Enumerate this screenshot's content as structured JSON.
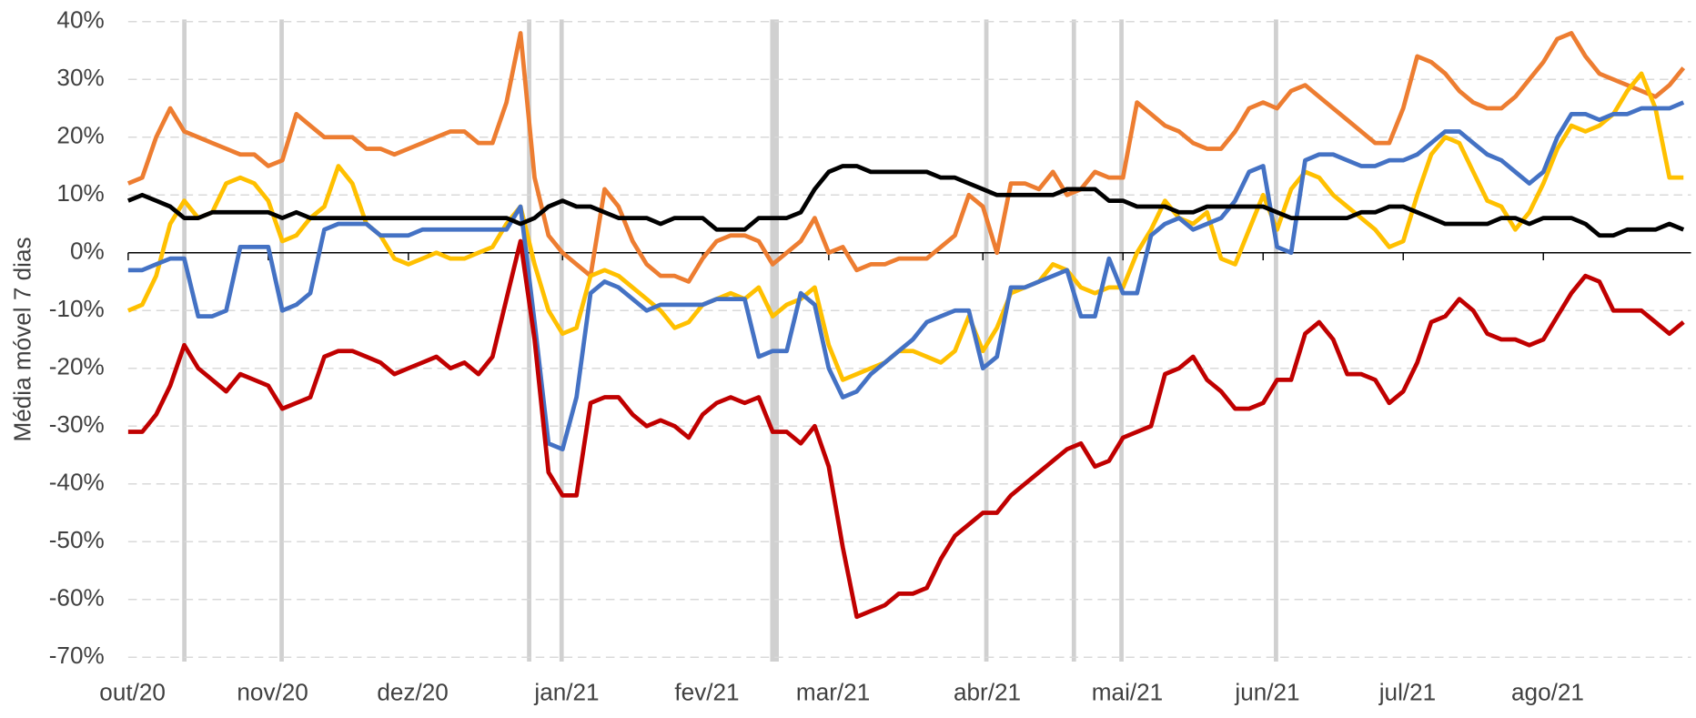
{
  "chart_data": {
    "type": "line",
    "y_label": "Média móvel 7 dias",
    "categories": [
      "out/20",
      null,
      null,
      null,
      null,
      null,
      null,
      null,
      null,
      null,
      "nov/20",
      null,
      null,
      null,
      null,
      null,
      null,
      null,
      null,
      null,
      "dez/20",
      null,
      null,
      null,
      null,
      null,
      null,
      null,
      null,
      null,
      null,
      "jan/21",
      null,
      null,
      null,
      null,
      null,
      null,
      null,
      null,
      null,
      "fev/21",
      null,
      null,
      null,
      null,
      null,
      null,
      null,
      null,
      "mar/21",
      null,
      null,
      null,
      null,
      null,
      null,
      null,
      null,
      null,
      null,
      "abr/21",
      null,
      null,
      null,
      null,
      null,
      null,
      null,
      null,
      null,
      "mai/21",
      null,
      null,
      null,
      null,
      null,
      null,
      null,
      null,
      null,
      "jun/21",
      null,
      null,
      null,
      null,
      null,
      null,
      null,
      null,
      null,
      "jul/21",
      null,
      null,
      null,
      null,
      null,
      null,
      null,
      null,
      null,
      "ago/21",
      null,
      null,
      null,
      null,
      null,
      null,
      null,
      null,
      null,
      null
    ],
    "series": [
      {
        "color": "#ed7d31",
        "values": [
          12,
          13,
          20,
          25,
          21,
          20,
          19,
          18,
          17,
          17,
          15,
          16,
          24,
          22,
          20,
          20,
          20,
          18,
          18,
          17,
          18,
          19,
          20,
          21,
          21,
          19,
          19,
          26,
          38,
          13,
          3,
          0,
          -2,
          -4,
          11,
          8,
          2,
          -2,
          -4,
          -4,
          -5,
          -1,
          2,
          3,
          3,
          2,
          -2,
          0,
          2,
          6,
          0,
          1,
          -3,
          -2,
          -2,
          -1,
          -1,
          -1,
          1,
          3,
          10,
          8,
          0,
          12,
          12,
          11,
          14,
          10,
          11,
          14,
          13,
          13,
          26,
          24,
          22,
          21,
          19,
          18,
          18,
          21,
          25,
          26,
          25,
          28,
          29,
          27,
          25,
          23,
          21,
          19,
          19,
          25,
          34,
          33,
          31,
          28,
          26,
          25,
          25,
          27,
          30,
          33,
          37,
          38,
          34,
          31,
          30,
          29,
          28,
          27,
          29,
          32
        ]
      },
      {
        "color": "#ffc000",
        "values": [
          -10,
          -9,
          -4,
          5,
          9,
          6,
          7,
          12,
          13,
          12,
          9,
          2,
          3,
          6,
          8,
          15,
          12,
          5,
          3,
          -1,
          -2,
          -1,
          0,
          -1,
          -1,
          0,
          1,
          5,
          8,
          -2,
          -10,
          -14,
          -13,
          -4,
          -3,
          -4,
          -6,
          -8,
          -10,
          -13,
          -12,
          -9,
          -8,
          -7,
          -8,
          -6,
          -11,
          -9,
          -8,
          -6,
          -16,
          -22,
          -21,
          -20,
          -19,
          -17,
          -17,
          -18,
          -19,
          -17,
          -11,
          -17,
          -13,
          -7,
          -6,
          -5,
          -2,
          -3,
          -6,
          -7,
          -6,
          -6,
          0,
          4,
          9,
          6,
          5,
          7,
          -1,
          -2,
          4,
          10,
          4,
          11,
          14,
          13,
          10,
          8,
          6,
          4,
          1,
          2,
          10,
          17,
          20,
          19,
          14,
          9,
          8,
          4,
          7,
          12,
          18,
          22,
          21,
          22,
          24,
          28,
          31,
          25,
          13,
          13
        ]
      },
      {
        "color": "#4472c4",
        "values": [
          -3,
          -3,
          -2,
          -1,
          -1,
          -11,
          -11,
          -10,
          1,
          1,
          1,
          -10,
          -9,
          -7,
          4,
          5,
          5,
          5,
          3,
          3,
          3,
          4,
          4,
          4,
          4,
          4,
          4,
          4,
          8,
          -12,
          -33,
          -34,
          -25,
          -7,
          -5,
          -6,
          -8,
          -10,
          -9,
          -9,
          -9,
          -9,
          -8,
          -8,
          -8,
          -18,
          -17,
          -17,
          -7,
          -9,
          -20,
          -25,
          -24,
          -21,
          -19,
          -17,
          -15,
          -12,
          -11,
          -10,
          -10,
          -20,
          -18,
          -6,
          -6,
          -5,
          -4,
          -3,
          -11,
          -11,
          -1,
          -7,
          -7,
          3,
          5,
          6,
          4,
          5,
          6,
          9,
          14,
          15,
          1,
          0,
          16,
          17,
          17,
          16,
          15,
          15,
          16,
          16,
          17,
          19,
          21,
          21,
          19,
          17,
          16,
          14,
          12,
          14,
          20,
          24,
          24,
          23,
          24,
          24,
          25,
          25,
          25,
          26
        ]
      },
      {
        "color": "#c00000",
        "values": [
          -31,
          -31,
          -28,
          -23,
          -16,
          -20,
          -22,
          -24,
          -21,
          -22,
          -23,
          -27,
          -26,
          -25,
          -18,
          -17,
          -17,
          -18,
          -19,
          -21,
          -20,
          -19,
          -18,
          -20,
          -19,
          -21,
          -18,
          -8,
          2,
          -15,
          -38,
          -42,
          -42,
          -26,
          -25,
          -25,
          -28,
          -30,
          -29,
          -30,
          -32,
          -28,
          -26,
          -25,
          -26,
          -25,
          -31,
          -31,
          -33,
          -30,
          -37,
          -51,
          -63,
          -62,
          -61,
          -59,
          -59,
          -58,
          -53,
          -49,
          -47,
          -45,
          -45,
          -42,
          -40,
          -38,
          -36,
          -34,
          -33,
          -37,
          -36,
          -32,
          -31,
          -30,
          -21,
          -20,
          -18,
          -22,
          -24,
          -27,
          -27,
          -26,
          -22,
          -22,
          -14,
          -12,
          -15,
          -21,
          -21,
          -22,
          -26,
          -24,
          -19,
          -12,
          -11,
          -8,
          -10,
          -14,
          -15,
          -15,
          -16,
          -15,
          -11,
          -7,
          -4,
          -5,
          -10,
          -10,
          -10,
          -12,
          -14,
          -12
        ]
      },
      {
        "color": "#000000",
        "values": [
          9,
          10,
          9,
          8,
          6,
          6,
          7,
          7,
          7,
          7,
          7,
          6,
          7,
          6,
          6,
          6,
          6,
          6,
          6,
          6,
          6,
          6,
          6,
          6,
          6,
          6,
          6,
          6,
          5,
          6,
          8,
          9,
          8,
          8,
          7,
          6,
          6,
          6,
          5,
          6,
          6,
          6,
          4,
          4,
          4,
          6,
          6,
          6,
          7,
          11,
          14,
          15,
          15,
          14,
          14,
          14,
          14,
          14,
          13,
          13,
          12,
          11,
          10,
          10,
          10,
          10,
          10,
          11,
          11,
          11,
          9,
          9,
          8,
          8,
          8,
          7,
          7,
          8,
          8,
          8,
          8,
          8,
          7,
          6,
          6,
          6,
          6,
          6,
          7,
          7,
          8,
          8,
          7,
          6,
          5,
          5,
          5,
          5,
          6,
          6,
          5,
          6,
          6,
          6,
          5,
          3,
          3,
          4,
          4,
          4,
          5,
          4
        ]
      }
    ],
    "ylim": [
      -70,
      40
    ],
    "yticks": [
      {
        "value": -70,
        "label": "-70%"
      },
      {
        "value": -60,
        "label": "-60%"
      },
      {
        "value": -50,
        "label": "-50%"
      },
      {
        "value": -40,
        "label": "-40%"
      },
      {
        "value": -30,
        "label": "-30%"
      },
      {
        "value": -20,
        "label": "-20%"
      },
      {
        "value": -10,
        "label": "-10%"
      },
      {
        "value": 0,
        "label": "0%"
      },
      {
        "value": 10,
        "label": "10%"
      },
      {
        "value": 20,
        "label": "20%"
      },
      {
        "value": 30,
        "label": "30%"
      },
      {
        "value": 40,
        "label": "40%"
      }
    ],
    "grid": true
  }
}
